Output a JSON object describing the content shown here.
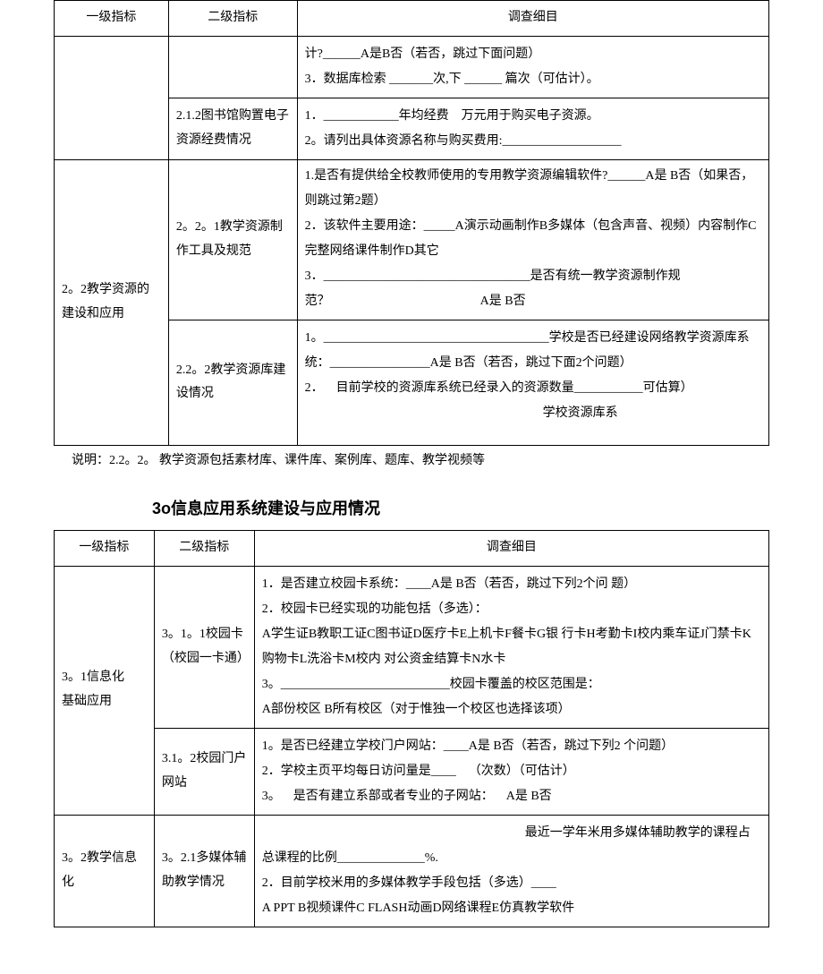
{
  "table1": {
    "headers": {
      "c1": "一级指标",
      "c2": "二级指标",
      "c3": "调查细目"
    },
    "rows": {
      "r1": {
        "c2": "",
        "c3": "计?______A是B否（若否，跳过下面问题）\n3．数据库检索 _______次,下 ______ 篇次（可估计）。"
      },
      "r2": {
        "c2": "2.1.2图书馆购置电子资源经费情况",
        "c3": "1．____________年均经费 万元用于购买电子资源。\n2。请列出具体资源名称与购买费用:___________________"
      },
      "r3": {
        "c1": "2。2教学资源的建设和应用",
        "c2": "2。2。1教学资源制作工具及规范",
        "c3": "1.是否有提供给全校教师使用的专用教学资源编辑软件?______A是 B否（如果否，则跳过第2题）\n2．该软件主要用途：_____A演示动画制作B多媒体（包含声音、视频）内容制作C完整网络课件制作D其它\n3．_________________________________是否有统一教学资源制作规范？            A是 B否"
      },
      "r4": {
        "c2": "2.2。2教学资源库建设情况",
        "c3": "1。____________________________________学校是否已经建设网络教学资源库系统：________________A是 B否（若否，跳过下面2个问题）\n2． 目前学校的资源库系统已经录入的资源数量___________可估算）\n                   学校资源库系"
      }
    }
  },
  "note_text": "说明：2.2。2。 教学资源包括素材库、课件库、案例库、题库、教学视频等",
  "section_title": "3o信息应用系统建设与应用情况",
  "table2": {
    "headers": {
      "c1": "一级指标",
      "c2": "二级指标",
      "c3": "调查细目"
    },
    "rows": {
      "r1": {
        "c1": "3。1信息化 基础应用",
        "c2": "3。1。1校园卡（校园一卡通）",
        "c3": "1．是否建立校园卡系统：____A是 B否（若否，跳过下列2个问 题）\n2．校园卡已经实现的功能包括（多选）：\nA学生证B教职工证C图书证D医疗卡E上机卡F餐卡G银 行卡H考勤卡I校内乘车证J门禁卡K购物卡L洗浴卡M校内 对公资金结算卡N水卡\n3。___________________________校园卡覆盖的校区范围是：\nA部份校区 B所有校区（对于惟独一个校区也选择该项）"
      },
      "r2": {
        "c2": "3.1。2校园门户网站",
        "c3": "1。是否已经建立学校门户网站：____A是 B否（若否，跳过下列2 个问题）\n2．学校主页平均每日访问量是____ （次数）（可估计）\n3。 是否有建立系部或者专业的子网站： A是 B否"
      },
      "r3": {
        "c1": "3。2教学信息化",
        "c2": "3。2.1多媒体辅助教学情况",
        "c3": "                     最近一学年米用多媒体辅助教学的课程占总课程的比例______________%.\n2．目前学校米用的多媒体教学手段包括（多选）____\nA PPT B视频课件C FLASH动画D网络课程E仿真教学软件"
      }
    }
  }
}
